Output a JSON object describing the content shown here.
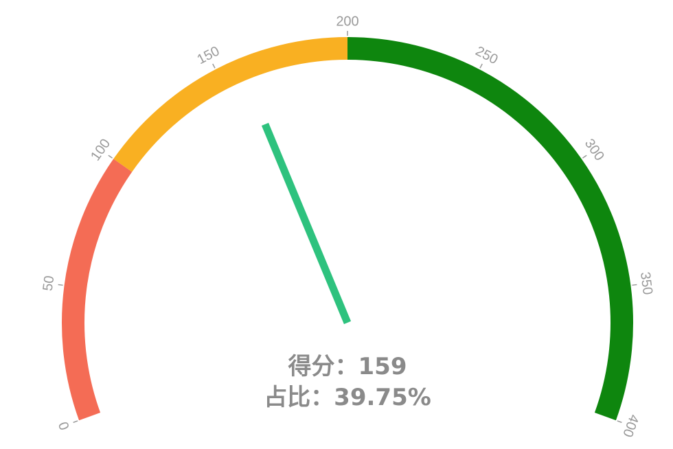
{
  "chart_data": {
    "type": "gauge",
    "min": 0,
    "max": 400,
    "value": 159,
    "percent": 39.75,
    "score_text": "得分：159",
    "percent_text": "占比：39.75%",
    "bands": [
      {
        "from": 0,
        "to": 100,
        "color": "#f46c55"
      },
      {
        "from": 100,
        "to": 200,
        "color": "#f9b022"
      },
      {
        "from": 200,
        "to": 400,
        "color": "#0e860e"
      }
    ],
    "ticks": [
      "0",
      "50",
      "100",
      "150",
      "200",
      "250",
      "300",
      "350",
      "400"
    ],
    "pointer_color": "#2ec27e",
    "tick_color": "#9a9a9a"
  }
}
